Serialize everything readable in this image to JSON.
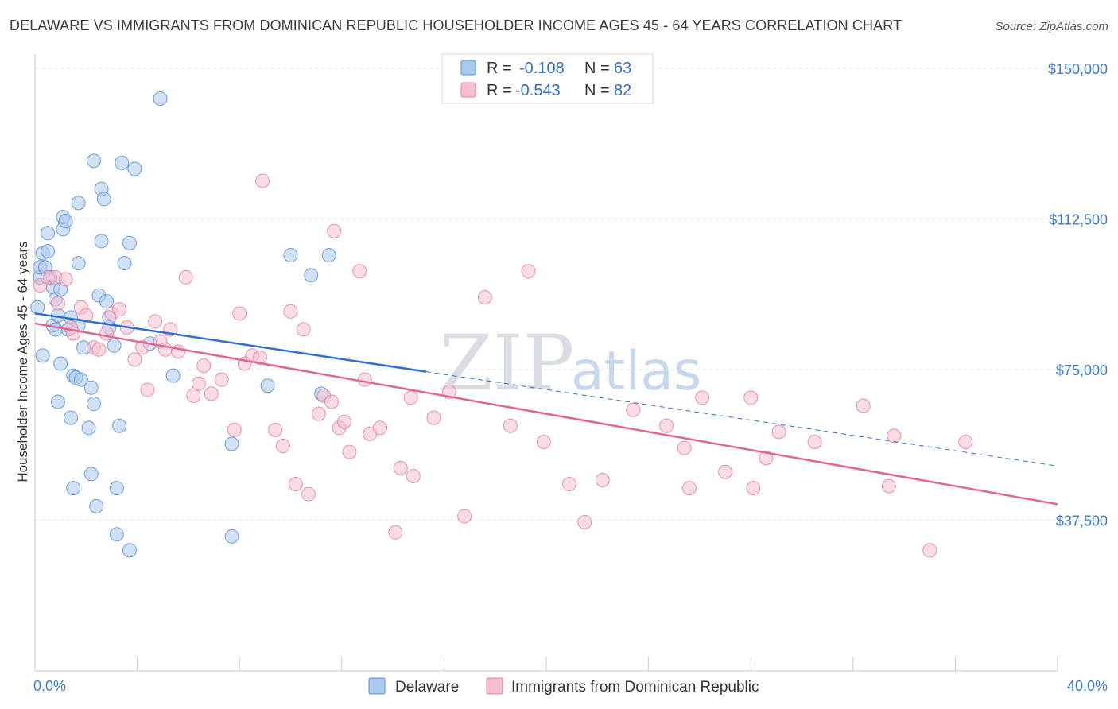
{
  "title": "DELAWARE VS IMMIGRANTS FROM DOMINICAN REPUBLIC HOUSEHOLDER INCOME AGES 45 - 64 YEARS CORRELATION CHART",
  "source": "Source: ZipAtlas.com",
  "watermark": {
    "zip": "ZIP",
    "atlas": "atlas"
  },
  "colors": {
    "blue_fill": "#a9c8ee",
    "blue_stroke": "#5b8fd4",
    "blue_line": "#2f6fd0",
    "pink_fill": "#f6bfd0",
    "pink_stroke": "#e47ea0",
    "pink_line": "#e0658f",
    "grid": "#e3e6ea",
    "tick_text": "#3d7cc9"
  },
  "legend": {
    "items": [
      {
        "r_label": "R =",
        "r_value": "-0.108",
        "n_label": "N =",
        "n_value": "63"
      },
      {
        "r_label": "R =",
        "r_value": "-0.543",
        "n_label": "N =",
        "n_value": "82"
      }
    ]
  },
  "chart_data": {
    "type": "scatter",
    "xlabel": "",
    "ylabel": "Householder Income Ages 45 - 64 years",
    "xlim": [
      0,
      40
    ],
    "ylim": [
      0,
      152000
    ],
    "x_tick_labels": [
      "0.0%",
      "40.0%"
    ],
    "y_ticks": [
      37500,
      75000,
      112500,
      150000
    ],
    "y_tick_labels": [
      "$37,500",
      "$75,000",
      "$112,500",
      "$150,000"
    ],
    "grid": true,
    "legend_position": "top-center",
    "series": [
      {
        "name": "Delaware",
        "points": [
          [
            0.1,
            90500
          ],
          [
            0.2,
            98000
          ],
          [
            0.2,
            100500
          ],
          [
            0.3,
            78500
          ],
          [
            0.3,
            104000
          ],
          [
            0.4,
            100500
          ],
          [
            0.5,
            109000
          ],
          [
            0.5,
            104500
          ],
          [
            0.6,
            98000
          ],
          [
            0.7,
            86000
          ],
          [
            0.7,
            95500
          ],
          [
            0.8,
            92500
          ],
          [
            0.8,
            85000
          ],
          [
            0.9,
            88500
          ],
          [
            0.9,
            67000
          ],
          [
            1.0,
            76500
          ],
          [
            1.0,
            95000
          ],
          [
            1.1,
            110000
          ],
          [
            1.1,
            113000
          ],
          [
            1.2,
            112000
          ],
          [
            1.3,
            85000
          ],
          [
            1.4,
            88000
          ],
          [
            1.4,
            63000
          ],
          [
            1.5,
            73500
          ],
          [
            1.5,
            45500
          ],
          [
            1.6,
            73000
          ],
          [
            1.7,
            86000
          ],
          [
            1.7,
            101500
          ],
          [
            1.7,
            116500
          ],
          [
            1.8,
            72500
          ],
          [
            1.9,
            80500
          ],
          [
            2.1,
            60500
          ],
          [
            2.2,
            70500
          ],
          [
            2.2,
            49000
          ],
          [
            2.3,
            127000
          ],
          [
            2.3,
            66500
          ],
          [
            2.4,
            41000
          ],
          [
            2.5,
            93500
          ],
          [
            2.6,
            107000
          ],
          [
            2.6,
            120000
          ],
          [
            2.7,
            117500
          ],
          [
            2.8,
            92000
          ],
          [
            2.9,
            85500
          ],
          [
            2.9,
            88000
          ],
          [
            3.1,
            81000
          ],
          [
            3.2,
            45500
          ],
          [
            3.2,
            34000
          ],
          [
            3.3,
            61000
          ],
          [
            3.4,
            126500
          ],
          [
            3.5,
            101500
          ],
          [
            3.7,
            106500
          ],
          [
            3.7,
            30000
          ],
          [
            3.9,
            125000
          ],
          [
            4.5,
            81500
          ],
          [
            4.9,
            142500
          ],
          [
            5.4,
            73500
          ],
          [
            7.7,
            56500
          ],
          [
            7.7,
            33500
          ],
          [
            9.1,
            71000
          ],
          [
            10.0,
            103500
          ],
          [
            10.8,
            98500
          ],
          [
            11.2,
            69000
          ],
          [
            11.5,
            103500
          ]
        ]
      },
      {
        "name": "Immigrants from Dominican Republic",
        "points": [
          [
            0.2,
            96000
          ],
          [
            0.5,
            98000
          ],
          [
            0.8,
            98000
          ],
          [
            0.9,
            91500
          ],
          [
            1.2,
            97500
          ],
          [
            1.4,
            85500
          ],
          [
            1.5,
            84000
          ],
          [
            1.8,
            90500
          ],
          [
            2.0,
            88500
          ],
          [
            2.3,
            80500
          ],
          [
            2.5,
            80000
          ],
          [
            2.8,
            84000
          ],
          [
            3.0,
            89000
          ],
          [
            3.3,
            90000
          ],
          [
            3.6,
            85500
          ],
          [
            3.9,
            77500
          ],
          [
            4.2,
            80500
          ],
          [
            4.4,
            70000
          ],
          [
            4.7,
            87000
          ],
          [
            4.9,
            82000
          ],
          [
            5.1,
            80000
          ],
          [
            5.3,
            85000
          ],
          [
            5.6,
            79500
          ],
          [
            5.9,
            98000
          ],
          [
            6.2,
            68500
          ],
          [
            6.4,
            71500
          ],
          [
            6.6,
            76000
          ],
          [
            6.9,
            69000
          ],
          [
            7.3,
            72500
          ],
          [
            7.8,
            60000
          ],
          [
            8.0,
            89000
          ],
          [
            8.2,
            76500
          ],
          [
            8.5,
            78500
          ],
          [
            8.8,
            78000
          ],
          [
            8.9,
            122000
          ],
          [
            9.4,
            60000
          ],
          [
            9.7,
            56000
          ],
          [
            10.0,
            89500
          ],
          [
            10.2,
            46500
          ],
          [
            10.5,
            85000
          ],
          [
            10.7,
            44000
          ],
          [
            11.1,
            64000
          ],
          [
            11.3,
            68500
          ],
          [
            11.6,
            67000
          ],
          [
            11.7,
            109500
          ],
          [
            11.9,
            60500
          ],
          [
            12.1,
            62000
          ],
          [
            12.3,
            54500
          ],
          [
            12.7,
            99500
          ],
          [
            12.9,
            72500
          ],
          [
            13.1,
            59000
          ],
          [
            13.5,
            60500
          ],
          [
            14.1,
            34500
          ],
          [
            14.3,
            50500
          ],
          [
            14.7,
            68000
          ],
          [
            14.8,
            48500
          ],
          [
            15.6,
            63000
          ],
          [
            16.2,
            69500
          ],
          [
            16.8,
            38500
          ],
          [
            17.6,
            93000
          ],
          [
            18.6,
            61000
          ],
          [
            19.3,
            99500
          ],
          [
            19.9,
            57000
          ],
          [
            20.9,
            46500
          ],
          [
            21.5,
            37000
          ],
          [
            22.2,
            47500
          ],
          [
            23.4,
            65000
          ],
          [
            24.7,
            61000
          ],
          [
            25.4,
            55500
          ],
          [
            25.6,
            45500
          ],
          [
            26.1,
            68000
          ],
          [
            27.0,
            49500
          ],
          [
            28.0,
            68000
          ],
          [
            28.1,
            45500
          ],
          [
            28.6,
            53000
          ],
          [
            29.1,
            59500
          ],
          [
            30.5,
            57000
          ],
          [
            32.4,
            66000
          ],
          [
            33.4,
            46000
          ],
          [
            33.6,
            58500
          ],
          [
            35.0,
            30000
          ],
          [
            36.4,
            57000
          ]
        ]
      }
    ],
    "trend_lines": [
      {
        "series": "Delaware",
        "solid": [
          [
            0,
            89000
          ],
          [
            15.3,
            74500
          ]
        ],
        "dashed": [
          [
            15.3,
            74500
          ],
          [
            40,
            51000
          ]
        ]
      },
      {
        "series": "Immigrants from Dominican Republic",
        "solid": [
          [
            0,
            86500
          ],
          [
            40,
            41500
          ]
        ]
      }
    ]
  },
  "bottom_legend": [
    "Delaware",
    "Immigrants from Dominican Republic"
  ]
}
